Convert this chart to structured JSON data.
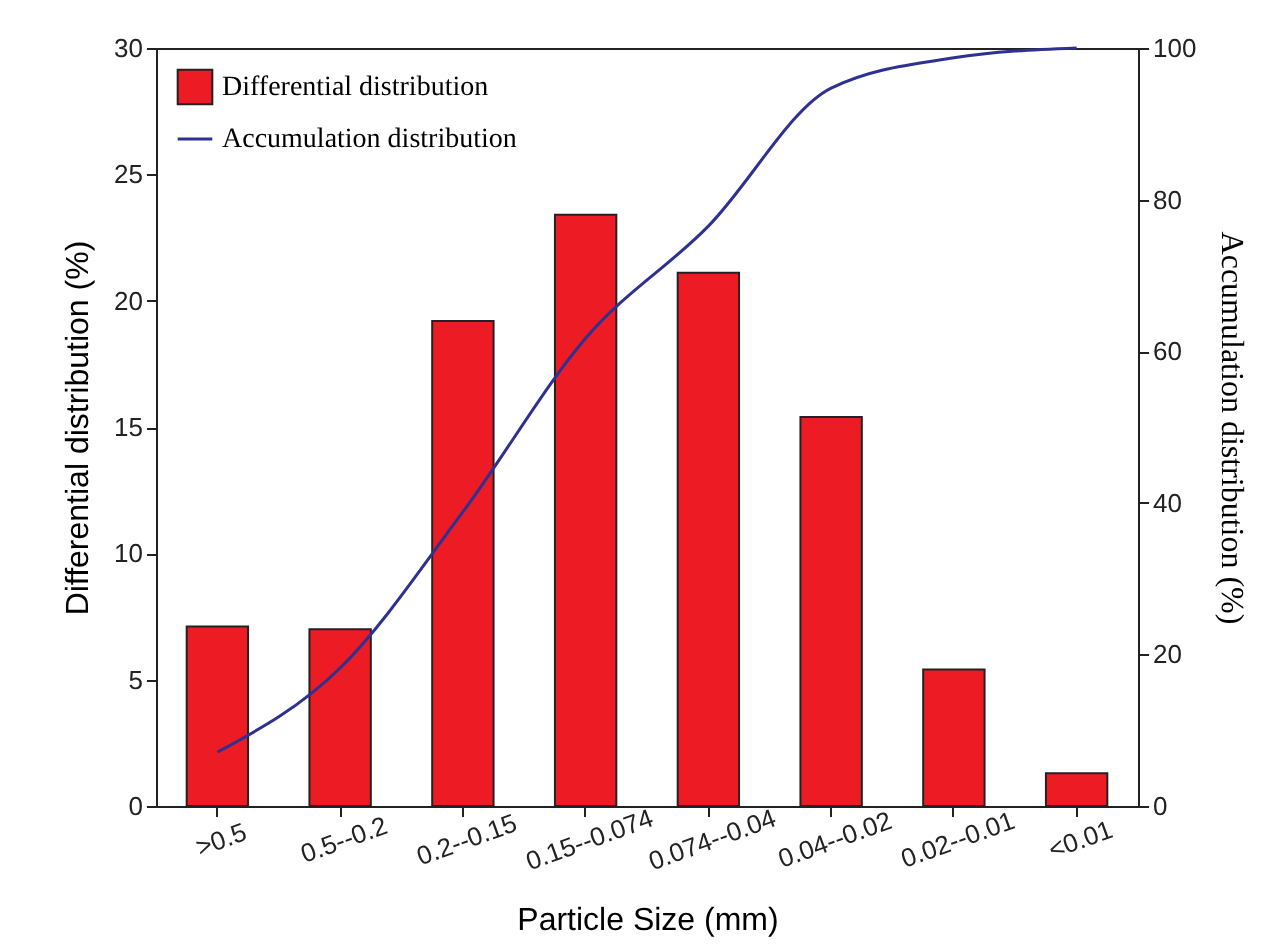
{
  "chart_data": {
    "type": "bar",
    "xlabel": "Particle Size (mm)",
    "ylabel": "Differential distribution (%)",
    "y2label": "Accumulation distribution (%)",
    "categories": [
      ">0.5",
      "0.5--0.2",
      "0.2--0.15",
      "0.15--0.074",
      "0.074--0.04",
      "0.04--0.02",
      "0.02--0.01",
      "<0.01"
    ],
    "series": [
      {
        "name": "Differential distribution",
        "color": "#ed1c24",
        "values": [
          7.1,
          7.0,
          19.2,
          23.4,
          21.1,
          15.4,
          5.4,
          1.3
        ]
      },
      {
        "name": "Accumulation distribution",
        "type": "line",
        "axis": "y2",
        "color": "#2e3192",
        "values": [
          7.1,
          18.2,
          38.8,
          61.7,
          76.5,
          94.7,
          98.7,
          100
        ]
      }
    ],
    "ylim": [
      0,
      30
    ],
    "yticks": [
      0,
      5,
      10,
      15,
      20,
      25,
      30
    ],
    "y2lim": [
      0,
      100
    ],
    "y2ticks": [
      0,
      20,
      40,
      60,
      80,
      100
    ],
    "legend": "top left",
    "grid": false
  }
}
